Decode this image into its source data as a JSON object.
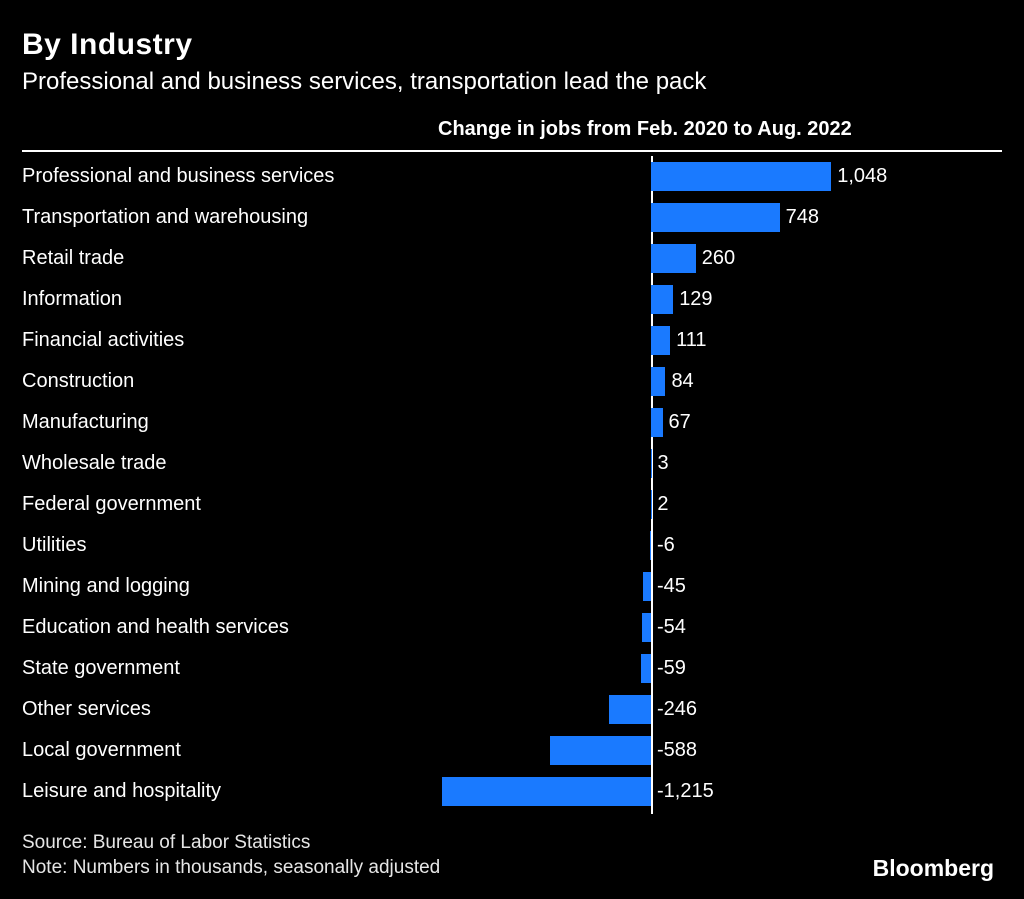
{
  "header": {
    "title": "By Industry",
    "subtitle": "Professional and business services, transportation lead the pack"
  },
  "chart_data": {
    "type": "bar",
    "orientation": "horizontal",
    "title": "Change in jobs from Feb. 2020 to Aug. 2022",
    "categories": [
      "Professional and business services",
      "Transportation and warehousing",
      "Retail trade",
      "Information",
      "Financial activities",
      "Construction",
      "Manufacturing",
      "Wholesale trade",
      "Federal government",
      "Utilities",
      "Mining and logging",
      "Education and health services",
      "State government",
      "Other services",
      "Local government",
      "Leisure and hospitality"
    ],
    "values": [
      1048,
      748,
      260,
      129,
      111,
      84,
      67,
      3,
      2,
      -6,
      -45,
      -54,
      -59,
      -246,
      -588,
      -1215
    ],
    "value_labels": [
      "1,048",
      "748",
      "260",
      "129",
      "111",
      "84",
      "67",
      "3",
      "2",
      "-6",
      "-45",
      "-54",
      "-59",
      "-246",
      "-588",
      "-1,215"
    ],
    "bar_color": "#1a7aff",
    "axis_color": "#ffffff",
    "xlim": [
      -1300,
      1100
    ],
    "grid": false,
    "legend": false
  },
  "footer": {
    "source": "Source: Bureau of Labor Statistics",
    "note": "Note: Numbers in thousands, seasonally adjusted",
    "logo": "Bloomberg"
  },
  "colors": {
    "background": "#000000",
    "text": "#ffffff",
    "bar": "#1a7aff"
  }
}
